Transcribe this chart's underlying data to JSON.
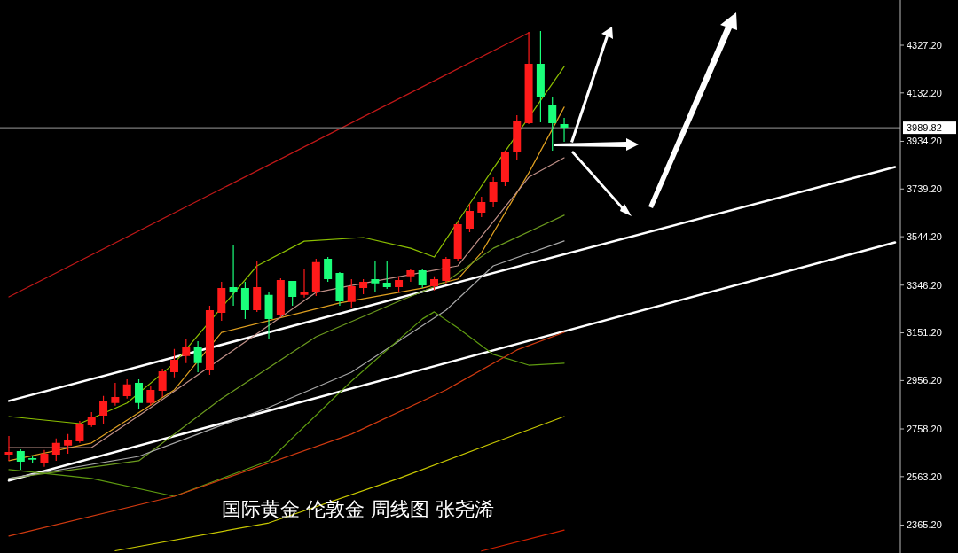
{
  "chart_data": {
    "type": "candlestick",
    "categories": [
      null,
      null,
      null,
      null,
      null,
      null,
      null,
      null,
      null,
      null,
      null,
      null,
      null,
      null,
      null,
      null,
      null,
      null,
      null,
      null,
      null,
      null,
      null,
      null,
      null,
      null,
      null,
      null,
      null,
      null,
      null,
      null,
      null,
      null,
      null,
      null,
      null,
      null,
      null,
      null,
      null,
      null,
      null,
      null,
      null,
      null,
      null,
      null,
      null,
      null,
      null,
      null,
      null,
      null,
      null,
      null,
      null,
      null,
      null,
      null,
      null,
      null,
      null,
      null,
      null,
      null,
      null,
      null,
      null,
      null,
      null,
      null,
      null,
      null,
      null,
      null
    ],
    "ohlc": [
      [
        2653,
        2729,
        2628,
        2664
      ],
      [
        2668,
        2675,
        2592,
        2624
      ],
      [
        2639,
        2646,
        2621,
        2632
      ],
      [
        2621,
        2672,
        2603,
        2657
      ],
      [
        2653,
        2719,
        2628,
        2701
      ],
      [
        2690,
        2737,
        2657,
        2711
      ],
      [
        2708,
        2791,
        2701,
        2780
      ],
      [
        2773,
        2827,
        2766,
        2809
      ],
      [
        2813,
        2893,
        2780,
        2871
      ],
      [
        2864,
        2947,
        2853,
        2889
      ],
      [
        2892,
        2961,
        2882,
        2940
      ],
      [
        2947,
        2961,
        2838,
        2864
      ],
      [
        2864,
        2932,
        2853,
        2918
      ],
      [
        2914,
        3005,
        2889,
        2994
      ],
      [
        2990,
        3085,
        2969,
        3041
      ],
      [
        3056,
        3128,
        3027,
        3092
      ],
      [
        3095,
        3117,
        2990,
        3027
      ],
      [
        3001,
        3262,
        2979,
        3244
      ],
      [
        3233,
        3360,
        3200,
        3334
      ],
      [
        3338,
        3508,
        3262,
        3320
      ],
      [
        3334,
        3360,
        3208,
        3244
      ],
      [
        3244,
        3447,
        3237,
        3338
      ],
      [
        3306,
        3316,
        3128,
        3208
      ],
      [
        3222,
        3374,
        3215,
        3367
      ],
      [
        3363,
        3363,
        3262,
        3298
      ],
      [
        3306,
        3414,
        3295,
        3316
      ],
      [
        3316,
        3454,
        3302,
        3440
      ],
      [
        3454,
        3461,
        3360,
        3371
      ],
      [
        3396,
        3400,
        3262,
        3280
      ],
      [
        3277,
        3371,
        3251,
        3342
      ],
      [
        3334,
        3371,
        3309,
        3360
      ],
      [
        3371,
        3443,
        3316,
        3353
      ],
      [
        3356,
        3443,
        3331,
        3338
      ],
      [
        3338,
        3382,
        3316,
        3367
      ],
      [
        3382,
        3414,
        3360,
        3407
      ],
      [
        3407,
        3414,
        3334,
        3345
      ],
      [
        3342,
        3382,
        3324,
        3371
      ],
      [
        3363,
        3461,
        3353,
        3454
      ],
      [
        3454,
        3606,
        3443,
        3595
      ],
      [
        3577,
        3679,
        3563,
        3650
      ],
      [
        3642,
        3708,
        3624,
        3686
      ],
      [
        3686,
        3787,
        3664,
        3769
      ],
      [
        3769,
        3896,
        3751,
        3889
      ],
      [
        3889,
        4041,
        3860,
        4019
      ],
      [
        4008,
        4382,
        4005,
        4251
      ],
      [
        4251,
        4385,
        4012,
        4113
      ],
      [
        4084,
        4113,
        3896,
        4008
      ],
      [
        4005,
        4030,
        3932,
        3989.82
      ],
      null,
      null,
      null,
      null,
      null,
      null,
      null,
      null,
      null,
      null,
      null,
      null,
      null,
      null,
      null,
      null,
      null,
      null,
      null,
      null,
      null,
      null,
      null,
      null,
      null,
      null,
      null,
      null
    ],
    "colors": [
      "#ff1a1a",
      "#1aff7a",
      "#1aff7a",
      "#ff1a1a",
      "#ff1a1a",
      "#ff1a1a",
      "#ff1a1a",
      "#ff1a1a",
      "#ff1a1a",
      "#ff1a1a",
      "#ff1a1a",
      "#1aff7a",
      "#ff1a1a",
      "#ff1a1a",
      "#ff1a1a",
      "#ff1a1a",
      "#1aff7a",
      "#ff1a1a",
      "#ff1a1a",
      "#1aff7a",
      "#1aff7a",
      "#ff1a1a",
      "#1aff7a",
      "#ff1a1a",
      "#1aff7a",
      "#ff1a1a",
      "#ff1a1a",
      "#1aff7a",
      "#1aff7a",
      "#ff1a1a",
      "#ff1a1a",
      "#1aff7a",
      "#1aff7a",
      "#ff1a1a",
      "#ff1a1a",
      "#1aff7a",
      "#ff1a1a",
      "#ff1a1a",
      "#ff1a1a",
      "#ff1a1a",
      "#ff1a1a",
      "#ff1a1a",
      "#ff1a1a",
      "#ff1a1a",
      "#ff1a1a",
      "#1aff7a",
      "#1aff7a",
      "#1aff7a",
      null,
      null,
      null,
      null,
      null,
      null,
      null,
      null,
      null,
      null,
      null,
      null,
      null,
      null,
      null,
      null,
      null,
      null,
      null,
      null,
      null,
      null,
      null,
      null,
      null,
      null,
      null,
      null
    ],
    "series": [
      {
        "type": "line",
        "color": "#ffffff",
        "values": [
          2873,
          null,
          null,
          null,
          null,
          null,
          null,
          null,
          null,
          null,
          null,
          null,
          null,
          null,
          null,
          null,
          null,
          null,
          null,
          null,
          null,
          null,
          null,
          null,
          null,
          null,
          null,
          null,
          null,
          null,
          null,
          null,
          null,
          null,
          null,
          null,
          null,
          null,
          null,
          null,
          null,
          null,
          null,
          null,
          null,
          null,
          null,
          null,
          null,
          null,
          null,
          null,
          null,
          null,
          null,
          null,
          null,
          null,
          null,
          null,
          null,
          null,
          null,
          null,
          null,
          null,
          null,
          null,
          null,
          null,
          null,
          null,
          null,
          null,
          null,
          3829
        ]
      },
      {
        "type": "line",
        "color": "#ffffff",
        "values": [
          2547,
          null,
          null,
          null,
          null,
          null,
          null,
          null,
          null,
          null,
          null,
          null,
          null,
          null,
          null,
          null,
          null,
          null,
          null,
          null,
          null,
          null,
          null,
          null,
          null,
          null,
          null,
          null,
          null,
          null,
          null,
          null,
          null,
          null,
          null,
          null,
          null,
          null,
          null,
          null,
          null,
          null,
          null,
          null,
          null,
          null,
          null,
          null,
          null,
          null,
          null,
          null,
          null,
          null,
          null,
          null,
          null,
          null,
          null,
          null,
          null,
          null,
          null,
          null,
          null,
          null,
          null,
          null,
          null,
          null,
          null,
          null,
          null,
          null,
          null,
          3521
        ]
      },
      {
        "type": "line",
        "color": "#c01818",
        "values": [
          3298,
          null,
          null,
          null,
          null,
          null,
          null,
          null,
          null,
          null,
          null,
          null,
          null,
          null,
          null,
          null,
          null,
          null,
          null,
          null,
          null,
          null,
          null,
          null,
          null,
          null,
          null,
          null,
          null,
          null,
          null,
          null,
          null,
          null,
          null,
          null,
          null,
          null,
          null,
          null,
          null,
          null,
          null,
          null,
          4378,
          null,
          null,
          null,
          null,
          null,
          null,
          null,
          null,
          null,
          null,
          null,
          null,
          null,
          null,
          null,
          null,
          null,
          null,
          null,
          null,
          null,
          null,
          null,
          null,
          null,
          null,
          null,
          null,
          null,
          null,
          null
        ]
      },
      {
        "type": "line",
        "color": "#8cc000",
        "values": [
          2809,
          null,
          null,
          null,
          null,
          null,
          2780,
          null,
          null,
          null,
          2864,
          null,
          null,
          null,
          3027,
          null,
          null,
          null,
          null,
          null,
          null,
          3425,
          null,
          null,
          null,
          3526,
          null,
          null,
          null,
          null,
          3541,
          null,
          null,
          null,
          3497,
          null,
          3461,
          null,
          3606,
          null,
          null,
          3823,
          null,
          null,
          null,
          null,
          null,
          4240,
          null,
          null,
          null,
          null,
          null,
          null,
          null,
          null,
          null,
          null,
          null,
          null,
          null,
          null,
          null,
          null,
          null,
          null,
          null,
          null,
          null,
          null,
          null,
          null,
          null,
          null,
          null,
          null
        ]
      },
      {
        "type": "line",
        "color": "#e0a020",
        "values": [
          2628,
          null,
          null,
          null,
          null,
          null,
          null,
          2701,
          null,
          null,
          null,
          null,
          null,
          null,
          2918,
          null,
          null,
          null,
          3153,
          null,
          null,
          null,
          null,
          null,
          null,
          null,
          null,
          null,
          3273,
          null,
          null,
          null,
          null,
          null,
          null,
          3334,
          null,
          null,
          3371,
          null,
          3479,
          null,
          3642,
          null,
          3805,
          null,
          null,
          4074,
          null,
          null,
          null,
          null,
          null,
          null,
          null,
          null,
          null,
          null,
          null,
          null,
          null,
          null,
          null,
          null,
          null,
          null,
          null,
          null,
          null,
          null,
          null,
          null,
          null,
          null,
          null,
          null
        ]
      },
      {
        "type": "line",
        "color": "#c09088",
        "values": [
          2682,
          null,
          null,
          null,
          null,
          null,
          null,
          2682,
          null,
          null,
          null,
          null,
          2845,
          null,
          null,
          null,
          null,
          null,
          null,
          null,
          null,
          null,
          null,
          null,
          null,
          null,
          3316,
          null,
          null,
          3345,
          null,
          null,
          null,
          null,
          null,
          null,
          null,
          null,
          3425,
          null,
          null,
          3606,
          null,
          null,
          3787,
          null,
          null,
          3867,
          null,
          null,
          null,
          null,
          null,
          null,
          null,
          null,
          null,
          null,
          null,
          null,
          null,
          null,
          null,
          null,
          null,
          null,
          null,
          null,
          null,
          null,
          null,
          null,
          null,
          null,
          null,
          null
        ]
      },
      {
        "type": "line",
        "color": "#6b9a1e",
        "values": [
          2556,
          null,
          null,
          null,
          null,
          null,
          null,
          null,
          null,
          null,
          null,
          2628,
          null,
          null,
          null,
          null,
          null,
          null,
          2882,
          null,
          null,
          null,
          null,
          null,
          null,
          null,
          3135,
          null,
          null,
          null,
          null,
          null,
          null,
          3280,
          null,
          null,
          null,
          3360,
          null,
          null,
          null,
          3497,
          null,
          null,
          null,
          null,
          null,
          3632,
          null,
          null,
          null,
          null,
          null,
          null,
          null,
          null,
          null,
          null,
          null,
          null,
          null,
          null,
          null,
          null,
          null,
          null,
          null,
          null,
          null,
          null,
          null,
          null,
          null,
          null,
          null,
          null
        ]
      },
      {
        "type": "line",
        "color": "#a8a8a8",
        "values": [
          2556,
          null,
          null,
          null,
          null,
          null,
          null,
          null,
          null,
          null,
          null,
          2646,
          null,
          null,
          null,
          null,
          null,
          null,
          null,
          null,
          null,
          null,
          2846,
          null,
          null,
          null,
          null,
          null,
          null,
          2990,
          null,
          null,
          null,
          null,
          null,
          null,
          null,
          3244,
          null,
          null,
          null,
          3425,
          null,
          null,
          null,
          null,
          null,
          3527,
          null,
          null,
          null,
          null,
          null,
          null,
          null,
          null,
          null,
          null,
          null,
          null,
          null,
          null,
          null,
          null,
          null,
          null,
          null,
          null,
          null,
          null,
          null,
          null,
          null,
          null,
          null,
          null
        ]
      },
      {
        "type": "line",
        "color": "#5e9a10",
        "values": [
          2592,
          null,
          null,
          null,
          null,
          null,
          null,
          2556,
          null,
          null,
          null,
          null,
          null,
          null,
          2483,
          null,
          null,
          null,
          null,
          null,
          null,
          null,
          2628,
          null,
          null,
          null,
          null,
          null,
          null,
          2954,
          null,
          null,
          null,
          null,
          null,
          3208,
          3237,
          null,
          3171,
          null,
          null,
          3063,
          null,
          null,
          3019,
          null,
          null,
          3027,
          null,
          null,
          null,
          null,
          null,
          null,
          null,
          null,
          null,
          null,
          null,
          null,
          null,
          null,
          null,
          null,
          null,
          null,
          null,
          null,
          null,
          null,
          null,
          null,
          null,
          null,
          null,
          null
        ]
      },
      {
        "type": "line",
        "color": "#d03a10",
        "values": [
          2320,
          null,
          null,
          null,
          null,
          null,
          null,
          null,
          null,
          null,
          null,
          null,
          null,
          null,
          2483,
          null,
          null,
          null,
          null,
          null,
          null,
          null,
          null,
          null,
          null,
          null,
          null,
          null,
          null,
          2737,
          null,
          null,
          null,
          null,
          null,
          null,
          null,
          2918,
          null,
          null,
          null,
          null,
          null,
          3081,
          null,
          null,
          null,
          3153,
          null,
          null,
          null,
          null,
          null,
          null,
          null,
          null,
          null,
          null,
          null,
          null,
          null,
          null,
          null,
          null,
          null,
          null,
          null,
          null,
          null,
          null,
          null,
          null,
          null,
          null,
          null,
          null
        ]
      },
      {
        "type": "line",
        "color": "#c8c800",
        "values": [
          null,
          null,
          null,
          null,
          null,
          null,
          null,
          null,
          null,
          2260,
          null,
          null,
          null,
          null,
          null,
          null,
          null,
          null,
          null,
          null,
          null,
          null,
          2374,
          null,
          null,
          null,
          null,
          null,
          null,
          null,
          null,
          null,
          null,
          2556,
          null,
          null,
          null,
          null,
          null,
          null,
          null,
          2701,
          null,
          null,
          null,
          null,
          null,
          2809,
          null,
          null,
          null,
          null,
          null,
          null,
          null,
          null,
          null,
          null,
          null,
          null,
          null,
          null,
          null,
          null,
          null,
          null,
          null,
          null,
          null,
          null,
          null,
          null,
          null,
          null,
          null,
          null
        ]
      },
      {
        "type": "line",
        "color": "#d02000",
        "values": [
          null,
          null,
          null,
          null,
          null,
          null,
          null,
          null,
          null,
          null,
          null,
          null,
          null,
          null,
          null,
          null,
          null,
          null,
          null,
          null,
          null,
          null,
          null,
          null,
          null,
          null,
          null,
          null,
          null,
          null,
          null,
          null,
          null,
          null,
          null,
          null,
          null,
          null,
          null,
          null,
          2259,
          null,
          null,
          null,
          null,
          null,
          null,
          2345,
          null,
          null,
          null,
          null,
          null,
          null,
          null,
          null,
          null,
          null,
          null,
          null,
          null,
          null,
          null,
          null,
          null,
          null,
          null,
          null,
          null,
          null,
          null,
          null,
          null,
          null,
          null,
          null
        ]
      }
    ],
    "ylim": [
      2251,
      4512
    ],
    "yticks": [
      {
        "value": 2365.2,
        "label": "2365.20"
      },
      {
        "value": 2563.2,
        "label": "2563.20"
      },
      {
        "value": 2758.2,
        "label": "2758.20"
      },
      {
        "value": 2956.2,
        "label": "2956.20"
      },
      {
        "value": 3151.2,
        "label": "3151.20"
      },
      {
        "value": 3346.2,
        "label": "3346.20"
      },
      {
        "value": 3544.2,
        "label": "3544.20"
      },
      {
        "value": 3739.2,
        "label": "3739.20"
      },
      {
        "value": 3934.2,
        "label": "3934.20"
      },
      {
        "value": 4132.2,
        "label": "4132.20"
      },
      {
        "value": 4327.2,
        "label": "4327.20"
      }
    ],
    "ref_lines": [
      {
        "axis": "y",
        "value": 3989.82,
        "label": "3989.82",
        "color": "#9a9a9a"
      }
    ],
    "annotations": [
      "国际黄金 伦敦金 周线图 张尧浠"
    ],
    "tick_labels": "y",
    "grid": false
  }
}
